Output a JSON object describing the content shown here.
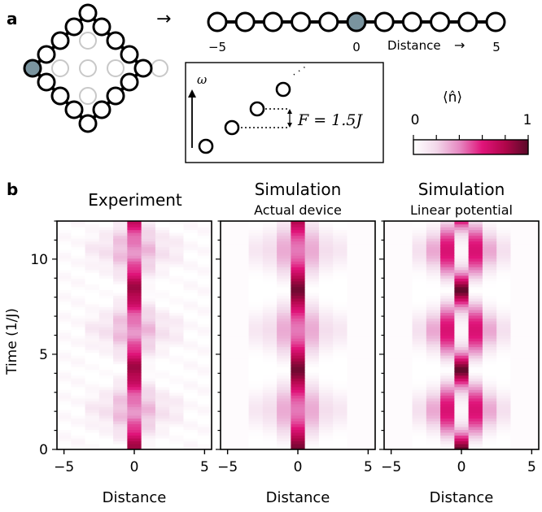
{
  "panel_a": {
    "label": "a",
    "arrow": "→",
    "chain": {
      "tick_labels": [
        "−5",
        "0",
        "5"
      ],
      "axis_label": "Distance",
      "axis_arrow": "→",
      "occupied_color": "#7a949f"
    },
    "inset": {
      "y_label": "ω",
      "gap_label": "F = 1.5J",
      "ellipsis": "·  ·  ·"
    },
    "colorbar": {
      "label": "⟨n̂⟩",
      "min_label": "0",
      "max_label": "1",
      "stops": [
        "#ffffff",
        "#f2d8ea",
        "#e689c2",
        "#e0147a",
        "#b0064a",
        "#5a0a28"
      ]
    }
  },
  "panel_b": {
    "label": "b",
    "titles": [
      {
        "title": "Experiment",
        "subtitle": ""
      },
      {
        "title": "Simulation",
        "subtitle": "Actual device"
      },
      {
        "title": "Simulation",
        "subtitle": "Linear potential"
      }
    ],
    "ylabel": "Time (1/J)",
    "xlabel": "Distance",
    "x_ticks": [
      "−5",
      "0",
      "5"
    ],
    "y_ticks": [
      "0",
      "5",
      "10"
    ]
  },
  "chart_data": [
    {
      "type": "heatmap",
      "title": "Experiment",
      "xlabel": "Distance",
      "ylabel": "Time (1/J)",
      "xlim": [
        -5.5,
        5.5
      ],
      "ylim": [
        0,
        12
      ],
      "x_ticks": [
        -5,
        0,
        5
      ],
      "y_ticks": [
        0,
        5,
        10
      ],
      "colorbar_range": [
        0,
        1
      ],
      "bloch_period": 4.2,
      "site_spread": 3,
      "description_values": {
        "center_max": 0.85,
        "side_max": 0.3
      }
    },
    {
      "type": "heatmap",
      "title": "Simulation",
      "subtitle": "Actual device",
      "xlabel": "Distance",
      "xlim": [
        -5.5,
        5.5
      ],
      "ylim": [
        0,
        12
      ],
      "x_ticks": [
        -5,
        0,
        5
      ],
      "colorbar_range": [
        0,
        1
      ],
      "bloch_period": 4.2,
      "site_spread": 3,
      "description_values": {
        "center_max": 0.95,
        "side_max": 0.35
      }
    },
    {
      "type": "heatmap",
      "title": "Simulation",
      "subtitle": "Linear potential",
      "xlabel": "Distance",
      "xlim": [
        -5.5,
        5.5
      ],
      "ylim": [
        0,
        12
      ],
      "x_ticks": [
        -5,
        0,
        5
      ],
      "colorbar_range": [
        0,
        1
      ],
      "bloch_period": 4.19,
      "site_spread": 3,
      "description_values": {
        "center_max": 1.0,
        "side_max": 0.45
      }
    }
  ]
}
